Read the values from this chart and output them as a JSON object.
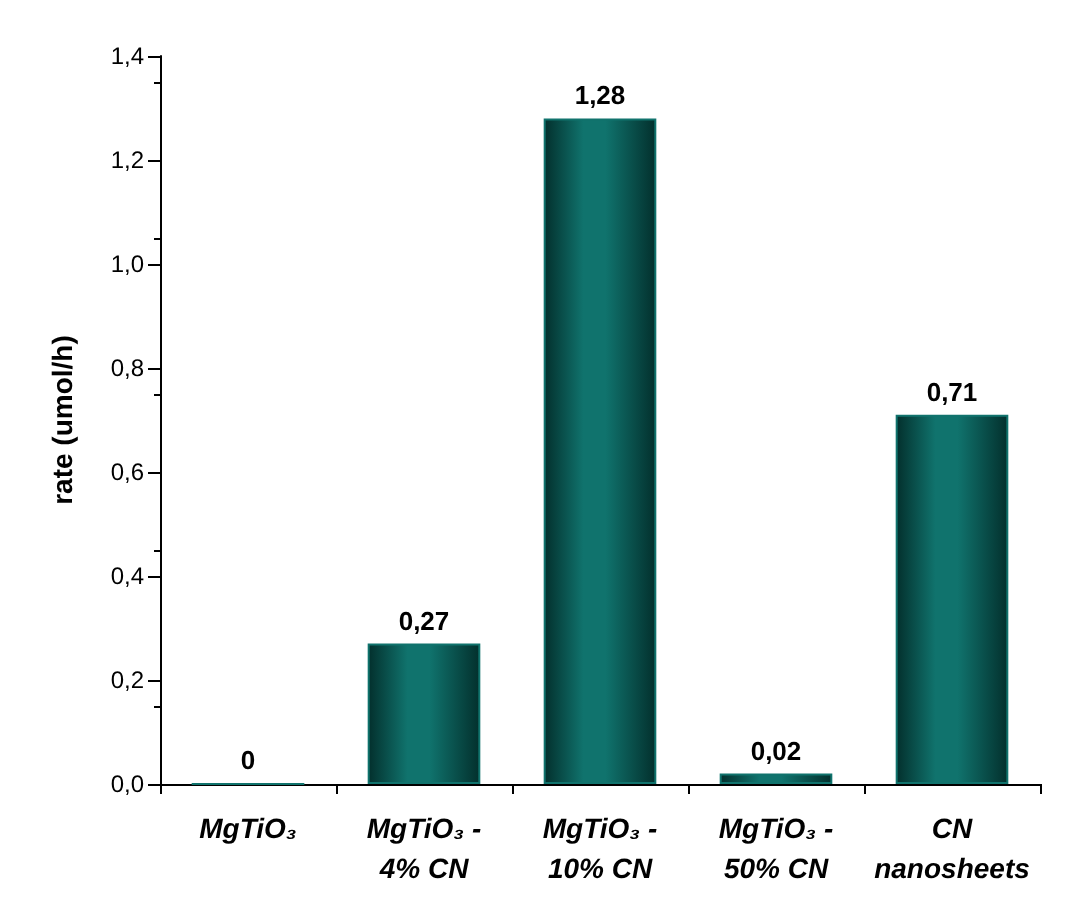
{
  "chart_data": {
    "type": "bar",
    "ylabel": "rate (umol/h)",
    "categories": [
      "MgTiO₃",
      "MgTiO₃ -\n4% CN",
      "MgTiO₃ -\n10% CN",
      "MgTiO₃ -\n50% CN",
      "CN\nnanosheets"
    ],
    "values": [
      0,
      0.27,
      1.28,
      0.02,
      0.71
    ],
    "value_labels": [
      "0",
      "0,27",
      "1,28",
      "0,02",
      "0,71"
    ],
    "color": "#10736d",
    "ylim": [
      0,
      1.4
    ],
    "yticks": [
      {
        "value": 0,
        "label": "0,0"
      },
      {
        "value": 0.2,
        "label": "0,2"
      },
      {
        "value": 0.4,
        "label": "0,4"
      },
      {
        "value": 0.6,
        "label": "0,6"
      },
      {
        "value": 0.8,
        "label": "0,8"
      },
      {
        "value": 1,
        "label": "1,0"
      },
      {
        "value": 1.2,
        "label": "1,2"
      },
      {
        "value": 1.4,
        "label": "1,4"
      }
    ],
    "grid": false
  }
}
